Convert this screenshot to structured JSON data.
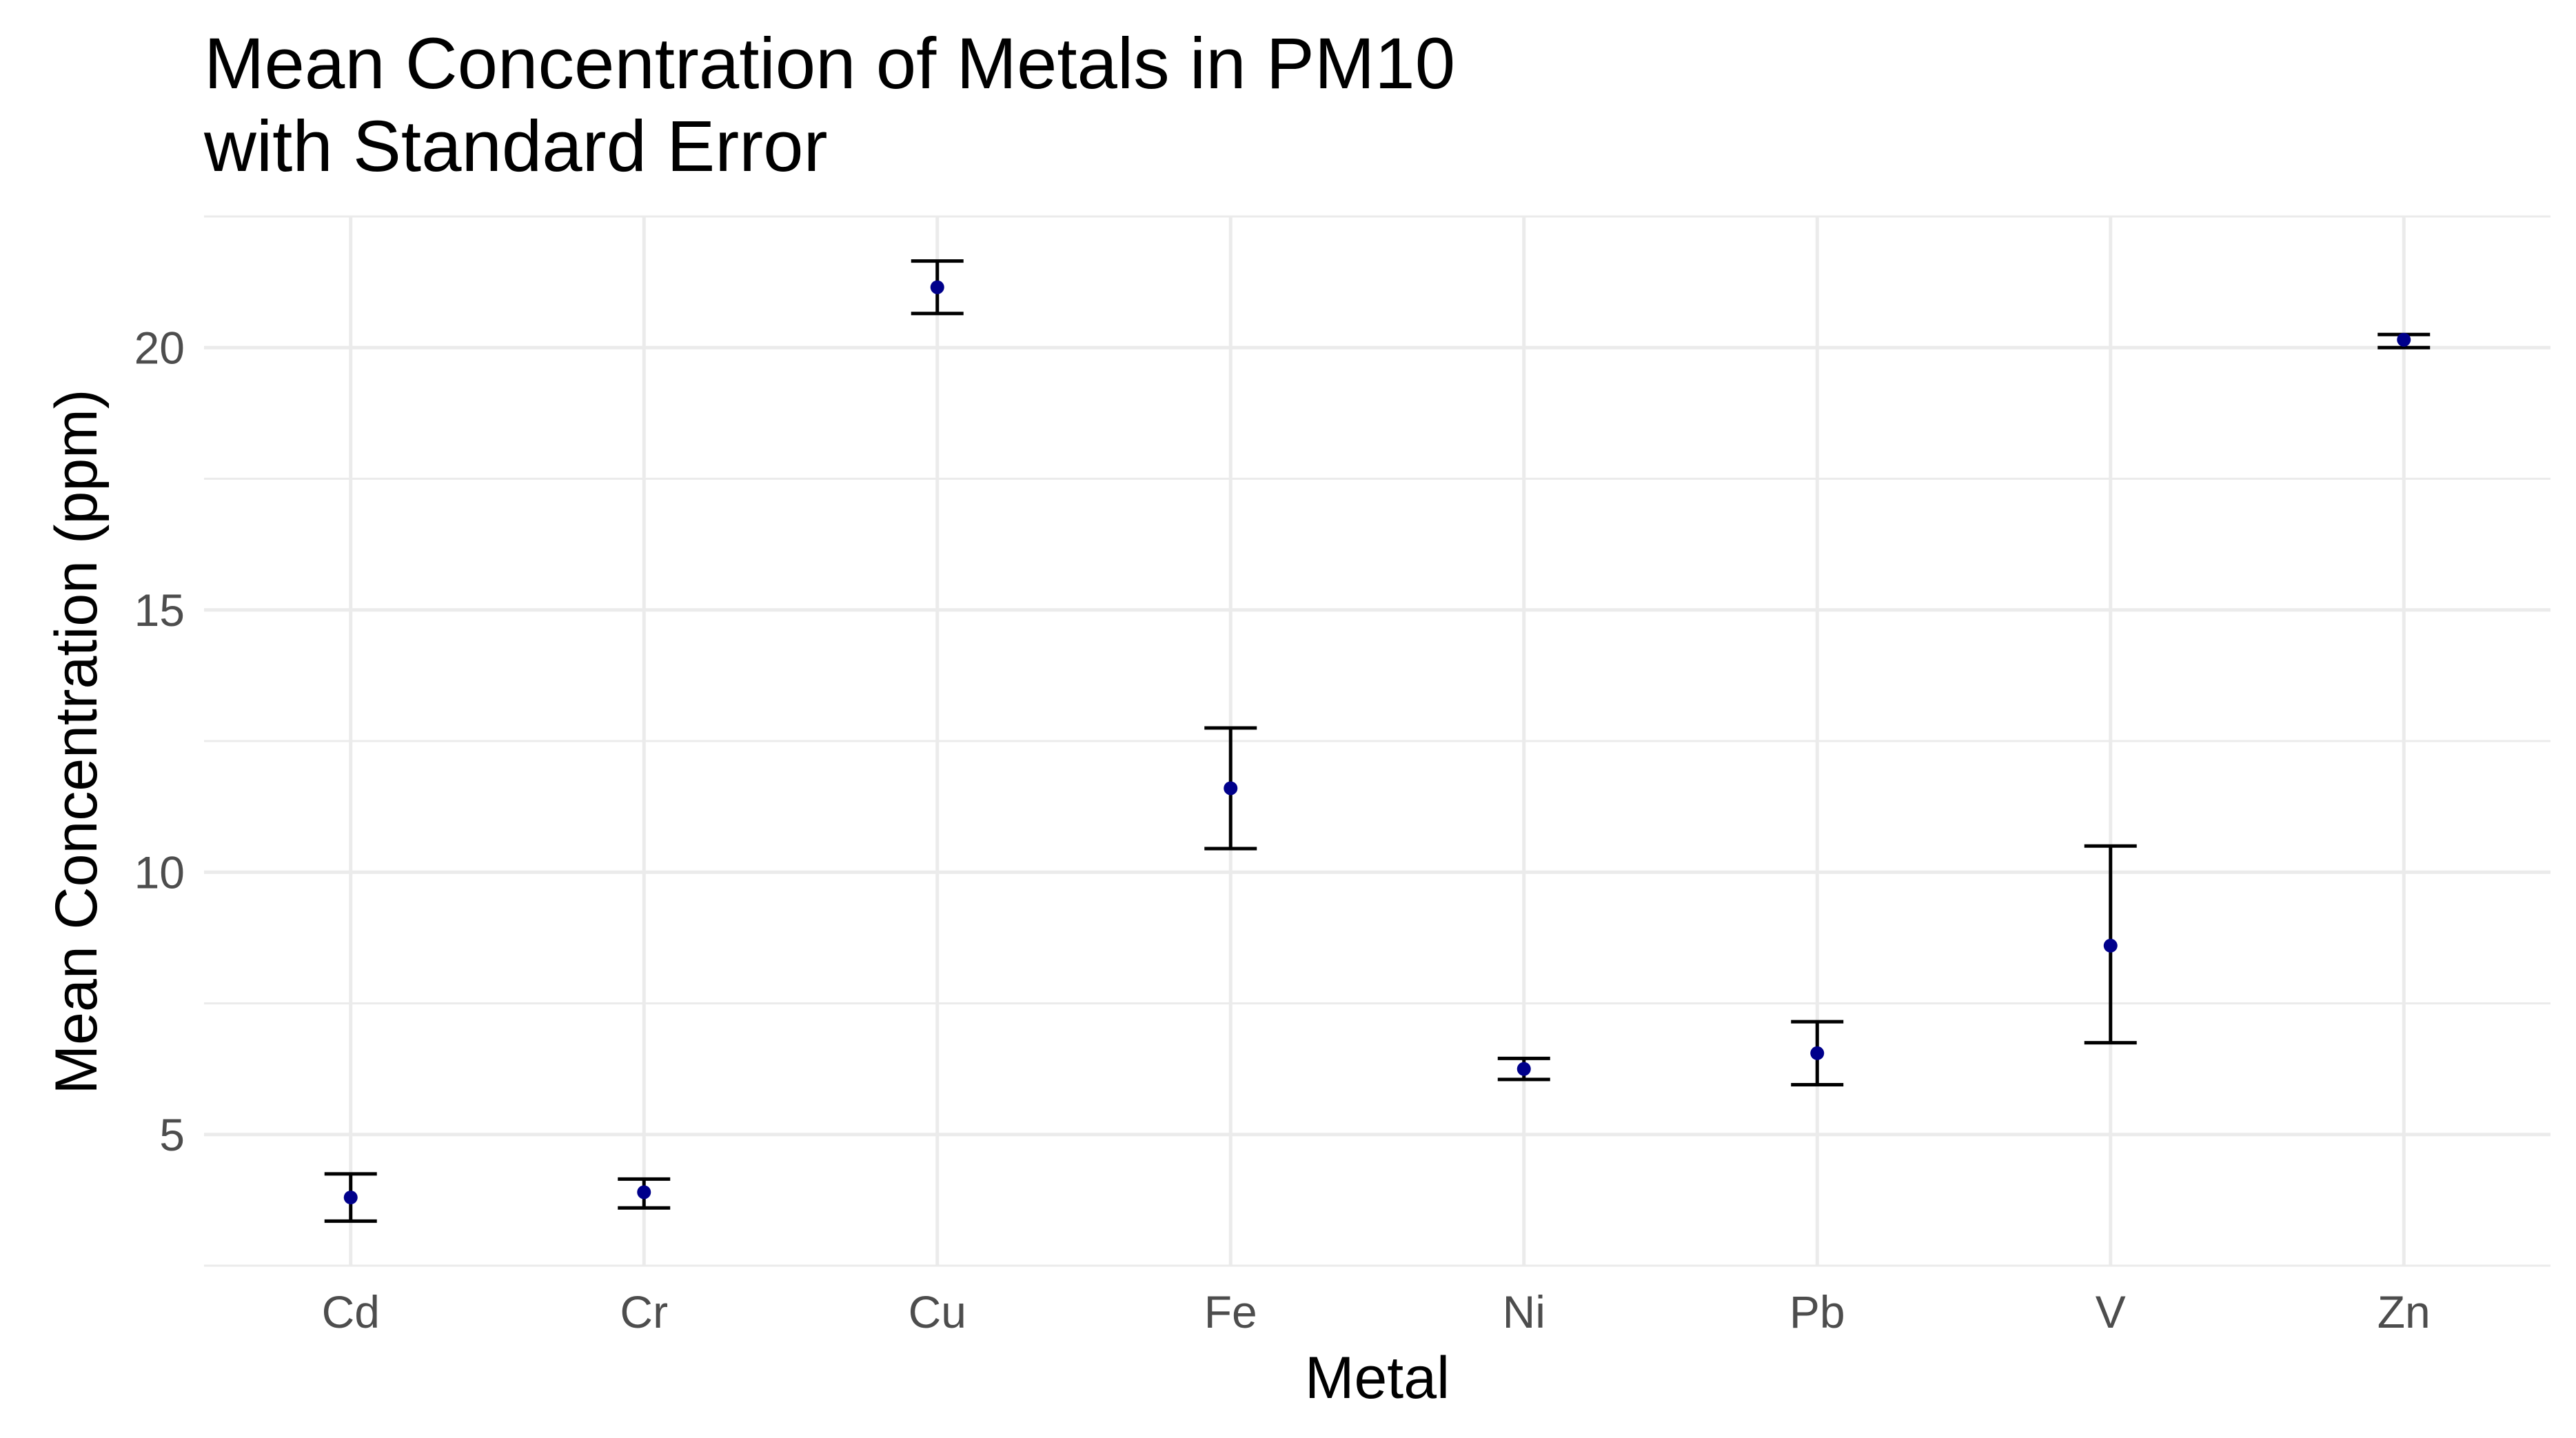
{
  "chart_data": {
    "type": "scatter",
    "title_lines": [
      "Mean Concentration of Metals in PM10",
      "with Standard Error"
    ],
    "xlabel": "Metal",
    "ylabel": "Mean Concentration (ppm)",
    "categories": [
      "Cd",
      "Cr",
      "Cu",
      "Fe",
      "Ni",
      "Pb",
      "V",
      "Zn"
    ],
    "values": [
      3.8,
      3.9,
      21.15,
      11.6,
      6.25,
      6.55,
      8.6,
      20.15
    ],
    "error_lower": [
      3.35,
      3.6,
      20.65,
      10.45,
      6.05,
      5.95,
      6.75,
      20.0
    ],
    "error_upper": [
      4.25,
      4.15,
      21.65,
      12.75,
      6.45,
      7.15,
      10.5,
      20.25
    ],
    "ylim": [
      2.5,
      22.5
    ],
    "yticks": [
      5,
      10,
      15,
      20
    ],
    "grid": true,
    "legend": "none",
    "colors": {
      "point": "#00008B",
      "error_bar": "#000000",
      "grid": "#EBEBEB"
    }
  }
}
